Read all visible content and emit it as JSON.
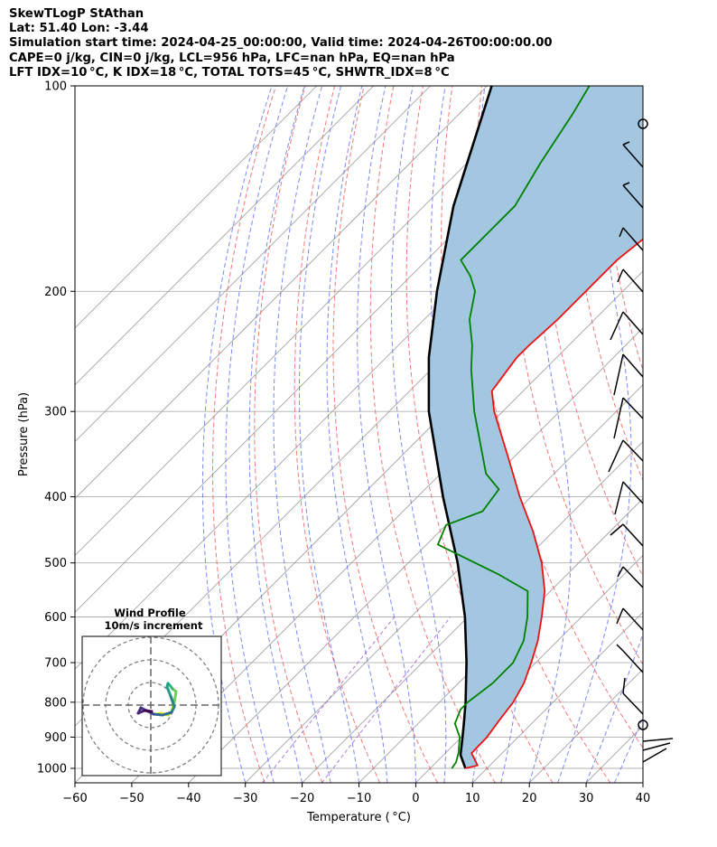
{
  "header": {
    "line1": "SkewTLogP StAthan",
    "line2": "Lat: 51.40   Lon: -3.44",
    "line3": "Simulation start time: 2024-04-25_00:00:00, Valid time: 2024-04-26T00:00:00.00",
    "line4": "CAPE=0 j/kg, CIN=0 j/kg, LCL=956 hPa, LFC=nan hPa, EQ=nan hPa",
    "line5": "LFT IDX=10 °C, K IDX=18 °C, TOTAL TOTS=45 °C, SHWTR_IDX=8 °C"
  },
  "colors": {
    "temperature": "#ee1111",
    "dewpoint": "#008000",
    "parcel": "#000000",
    "cape_fill": "#a3c7e0",
    "dry_adiabats": "#f06060",
    "moist_adiabats": "#5b6bf0",
    "mixing_ratio": "#9b59d0",
    "isotherms": "#999999"
  },
  "chart_data": [
    {
      "type": "line",
      "subtype": "skew-t log-p",
      "xlabel": "Temperature ( °C)",
      "ylabel": "Pressure (hPa)",
      "xlim": [
        -60,
        40
      ],
      "ylim": [
        1050,
        100
      ],
      "yscale": "log",
      "xticks": [
        "−60",
        "−50",
        "−40",
        "−30",
        "−20",
        "−10",
        "0",
        "10",
        "20",
        "30",
        "40"
      ],
      "yticks": [
        "100",
        "200",
        "300",
        "400",
        "500",
        "600",
        "700",
        "800",
        "900",
        "1000"
      ],
      "grid": true,
      "series": [
        {
          "key": "temperature",
          "points": [
            [
              1000,
              6.2
            ],
            [
              990,
              7.8
            ],
            [
              950,
              4.6
            ],
            [
              900,
              4.5
            ],
            [
              850,
              3.7
            ],
            [
              800,
              3.0
            ],
            [
              750,
              1.5
            ],
            [
              700,
              -0.8
            ],
            [
              650,
              -3.5
            ],
            [
              600,
              -7.0
            ],
            [
              550,
              -11.0
            ],
            [
              500,
              -16.5
            ],
            [
              450,
              -23.5
            ],
            [
              400,
              -32.0
            ],
            [
              350,
              -41.0
            ],
            [
              300,
              -51.5
            ],
            [
              280,
              -55.5
            ],
            [
              260,
              -56.5
            ],
            [
              250,
              -57.0
            ],
            [
              240,
              -57.0
            ],
            [
              220,
              -56.5
            ],
            [
              200,
              -56.5
            ],
            [
              180,
              -56.5
            ],
            [
              160,
              -55.0
            ],
            [
              140,
              -54.0
            ],
            [
              130,
              -54.5
            ],
            [
              120,
              -54.0
            ],
            [
              110,
              -55.0
            ],
            [
              100,
              -54.0
            ]
          ]
        },
        {
          "key": "dewpoint",
          "points": [
            [
              1000,
              3.8
            ],
            [
              980,
              3.5
            ],
            [
              950,
              2.3
            ],
            [
              900,
              -0.3
            ],
            [
              860,
              -3.5
            ],
            [
              820,
              -5.0
            ],
            [
              800,
              -5.0
            ],
            [
              750,
              -4.0
            ],
            [
              700,
              -4.0
            ],
            [
              650,
              -6.0
            ],
            [
              600,
              -9.5
            ],
            [
              550,
              -14.0
            ],
            [
              520,
              -22.0
            ],
            [
              470,
              -38.0
            ],
            [
              440,
              -40.0
            ],
            [
              420,
              -36.0
            ],
            [
              390,
              -37.0
            ],
            [
              370,
              -42.0
            ],
            [
              300,
              -55.0
            ],
            [
              260,
              -63.0
            ],
            [
              240,
              -67.0
            ],
            [
              220,
              -72.0
            ],
            [
              200,
              -76.0
            ],
            [
              190,
              -79.5
            ],
            [
              180,
              -84.0
            ],
            [
              150,
              -84.0
            ],
            [
              130,
              -87.0
            ],
            [
              110,
              -90.0
            ],
            [
              100,
              -92.0
            ]
          ]
        },
        {
          "key": "parcel",
          "points": [
            [
              1000,
              6.2
            ],
            [
              956,
              3.0
            ],
            [
              900,
              0.2
            ],
            [
              850,
              -2.5
            ],
            [
              800,
              -5.4
            ],
            [
              700,
              -12.2
            ],
            [
              600,
              -20.5
            ],
            [
              500,
              -31.3
            ],
            [
              400,
              -45.5
            ],
            [
              300,
              -63.0
            ],
            [
              250,
              -72.5
            ],
            [
              200,
              -82.7
            ],
            [
              150,
              -94.8
            ],
            [
              100,
              -109.2
            ]
          ]
        }
      ]
    },
    {
      "type": "line",
      "subtype": "hodograph",
      "title": "Wind Profile",
      "subtitle": "10m/s increment"
    }
  ]
}
